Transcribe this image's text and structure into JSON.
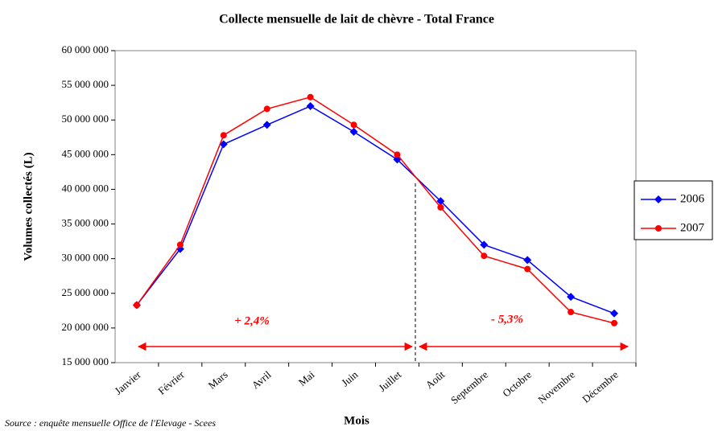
{
  "chart_data": {
    "type": "line",
    "title": "Collecte mensuelle de lait de chèvre - Total France",
    "x_label": "Mois",
    "y_label": "Volumes collectés (L)",
    "source": "Source : enquête mensuelle Office de l'Elevage - Scees",
    "annotations": [
      "+ 2,4%",
      "- 5,3%"
    ],
    "categories": [
      "Janvier",
      "Février",
      "Mars",
      "Avril",
      "Mai",
      "Juin",
      "Juillet",
      "Août",
      "Septembre",
      "Octobre",
      "Novembre",
      "Décembre"
    ],
    "series": [
      {
        "name": "2006",
        "color": "#0000ff",
        "marker": "diamond",
        "values": [
          23300000,
          31400000,
          46500000,
          49300000,
          52000000,
          48300000,
          44300000,
          38300000,
          32000000,
          29800000,
          24500000,
          22100000
        ]
      },
      {
        "name": "2007",
        "color": "#ff0000",
        "marker": "circle",
        "values": [
          23300000,
          32000000,
          47800000,
          51600000,
          53300000,
          49300000,
          45000000,
          37400000,
          30400000,
          28500000,
          22300000,
          20700000
        ]
      }
    ],
    "ylim": [
      15000000,
      60000000
    ],
    "yticks": [
      {
        "value": 15000000,
        "label": "15 000 000"
      },
      {
        "value": 20000000,
        "label": "20 000 000"
      },
      {
        "value": 25000000,
        "label": "25 000 000"
      },
      {
        "value": 30000000,
        "label": "30 000 000"
      },
      {
        "value": 35000000,
        "label": "35 000 000"
      },
      {
        "value": 40000000,
        "label": "40 000 000"
      },
      {
        "value": 45000000,
        "label": "45 000 000"
      },
      {
        "value": 50000000,
        "label": "50 000 000"
      },
      {
        "value": 55000000,
        "label": "55 000 000"
      },
      {
        "value": 60000000,
        "label": "60 000 000"
      }
    ],
    "grid": false,
    "legend": "right"
  }
}
